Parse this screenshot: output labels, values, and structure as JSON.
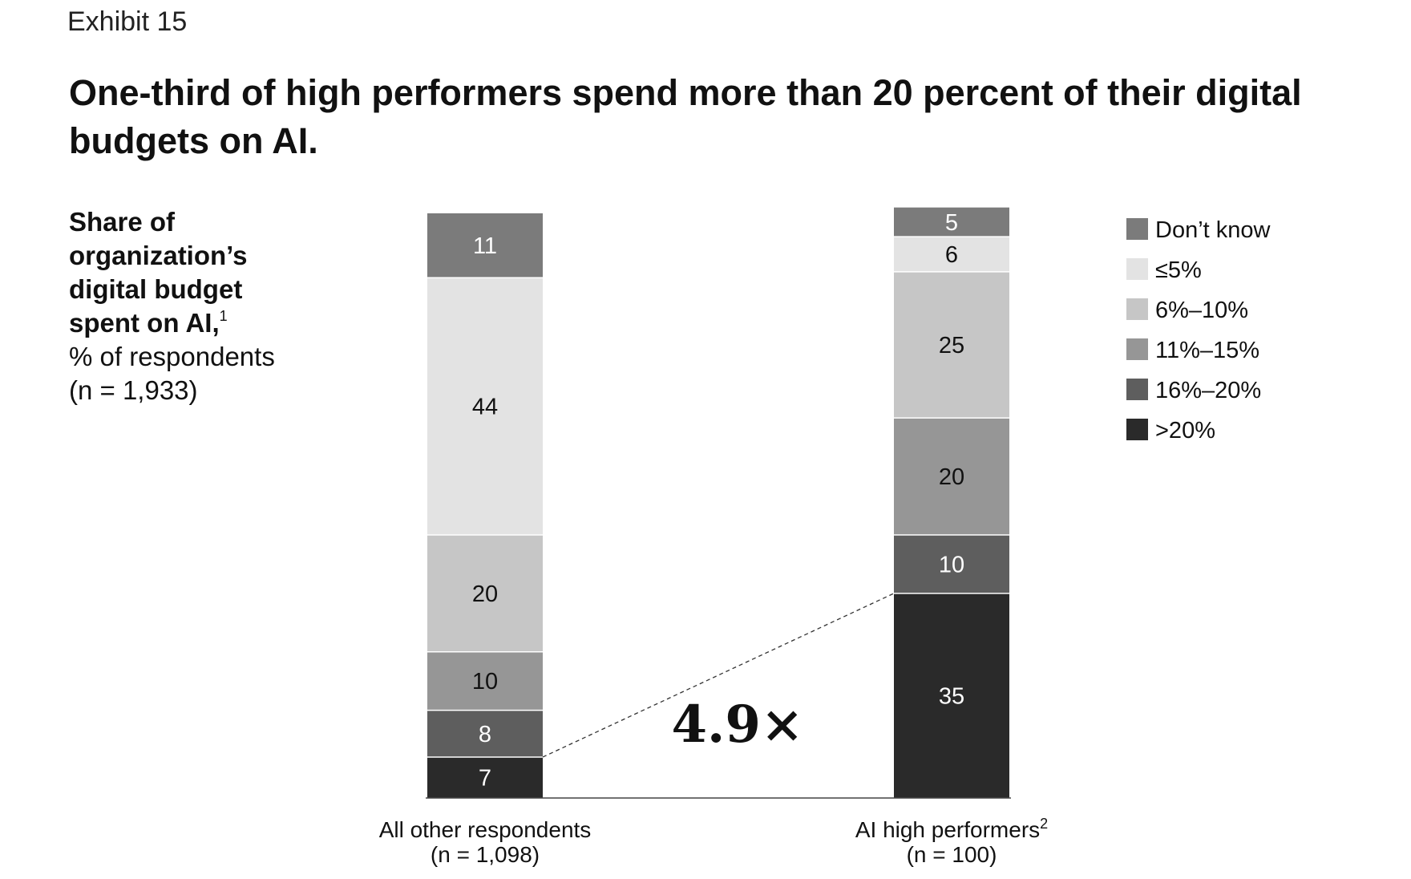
{
  "exhibit": "Exhibit 15",
  "title": "One-third of high performers spend more than 20 percent of their digital budgets on AI.",
  "ylabel": {
    "bold": "Share of organization’s digital budget spent on AI,",
    "footnote": "1",
    "unit": "% of respondents",
    "n": "(n = 1,933)"
  },
  "chart_data": {
    "type": "bar",
    "stacked": true,
    "orientation": "vertical",
    "ylim": [
      0,
      100
    ],
    "categories": [
      {
        "name": "All other respondents",
        "footnote": "",
        "n": "(n = 1,098)"
      },
      {
        "name": "AI high performers",
        "footnote": "2",
        "n": "(n = 100)"
      }
    ],
    "series": [
      {
        "name": ">20%",
        "color": "#2a2a2a",
        "label_color": "#ffffff",
        "values": [
          7,
          35
        ]
      },
      {
        "name": "16%–20%",
        "color": "#5e5e5e",
        "label_color": "#ffffff",
        "values": [
          8,
          10
        ]
      },
      {
        "name": "11%–15%",
        "color": "#969696",
        "label_color": "#111111",
        "values": [
          10,
          20
        ]
      },
      {
        "name": "6%–10%",
        "color": "#c6c6c6",
        "label_color": "#111111",
        "values": [
          20,
          25
        ]
      },
      {
        "name": "≤5%",
        "color": "#e3e3e3",
        "label_color": "#111111",
        "values": [
          44,
          6
        ]
      },
      {
        "name": "Don’t know",
        "color": "#7b7b7b",
        "label_color": "#ffffff",
        "values": [
          11,
          5
        ]
      }
    ],
    "legend_order": [
      "Don’t know",
      "≤5%",
      "6%–10%",
      "11%–15%",
      "16%–20%",
      ">20%"
    ],
    "legend_position": "right",
    "annotation": {
      "text": "4.9×",
      "from_series": ">20%",
      "connector": "dashed"
    },
    "title": "One-third of high performers spend more than 20 percent of their digital budgets on AI.",
    "xlabel": "",
    "ylabel": "% of respondents"
  }
}
